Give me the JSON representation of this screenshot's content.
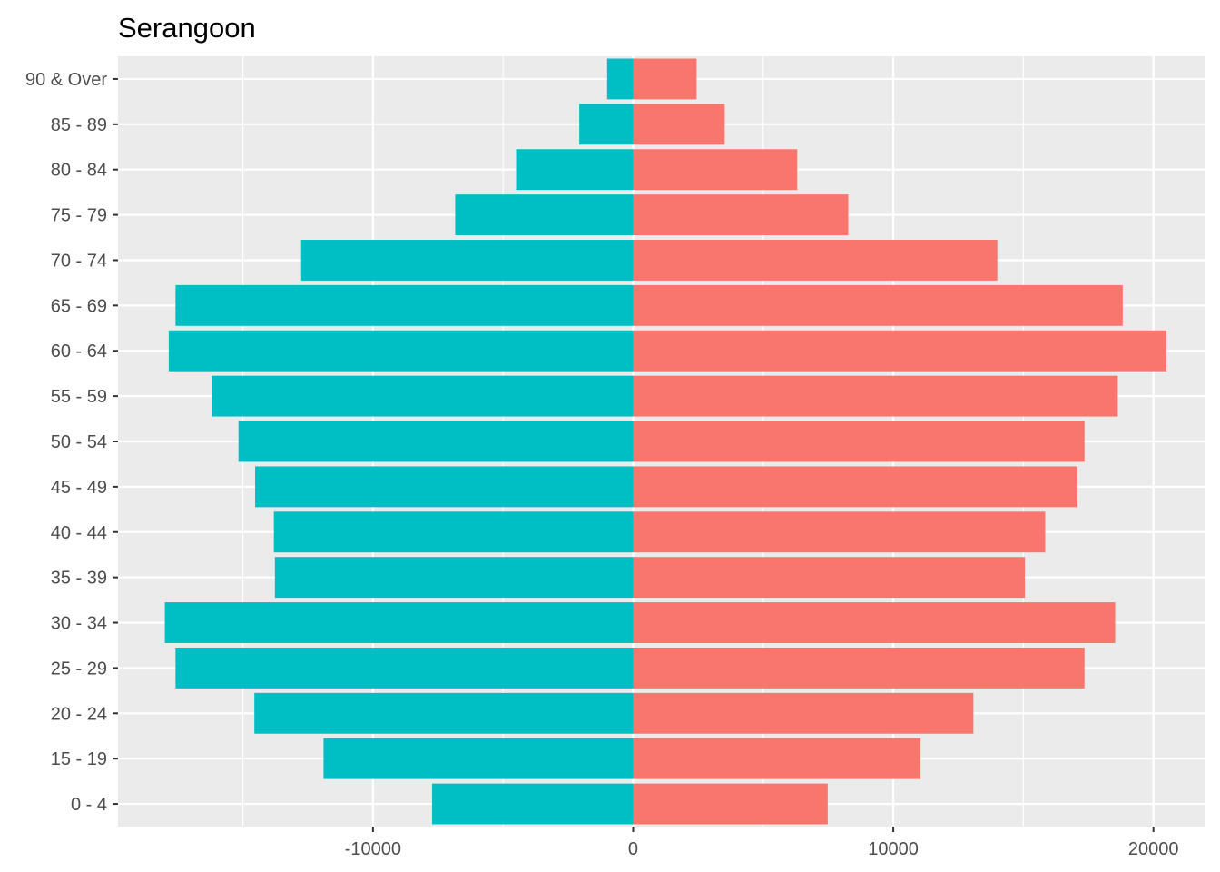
{
  "chart_data": {
    "type": "bar",
    "orientation": "horizontal",
    "title": "Serangoon",
    "xlabel": "",
    "ylabel": "",
    "categories": [
      "0 - 4",
      "15 - 19",
      "20 - 24",
      "25 - 29",
      "30 - 34",
      "35 - 39",
      "40 - 44",
      "45 - 49",
      "50 - 54",
      "55 - 59",
      "60 - 64",
      "65 - 69",
      "70 - 74",
      "75 - 79",
      "80 - 84",
      "85 - 89",
      "90 & Over"
    ],
    "series": [
      {
        "color": "#00BFC4",
        "values": [
          -7730,
          -11900,
          -14560,
          -17590,
          -18000,
          -13770,
          -13810,
          -14530,
          -15170,
          -16200,
          -17850,
          -17590,
          -12760,
          -6840,
          -4500,
          -2070,
          -1000
        ]
      },
      {
        "color": "#F8766D",
        "values": [
          7480,
          11050,
          13080,
          17350,
          18530,
          15060,
          15840,
          17080,
          17350,
          18630,
          20500,
          18820,
          14000,
          8270,
          6310,
          3520,
          2440
        ]
      }
    ],
    "xlim": [
      -19800,
      22000
    ],
    "xticks": [
      -10000,
      0,
      10000,
      20000
    ],
    "xtick_labels": [
      "-10000",
      "0",
      "10000",
      "20000"
    ],
    "grid": true,
    "legend": "none",
    "panel_background": "#EBEBEB",
    "grid_color": "#FFFFFF"
  }
}
